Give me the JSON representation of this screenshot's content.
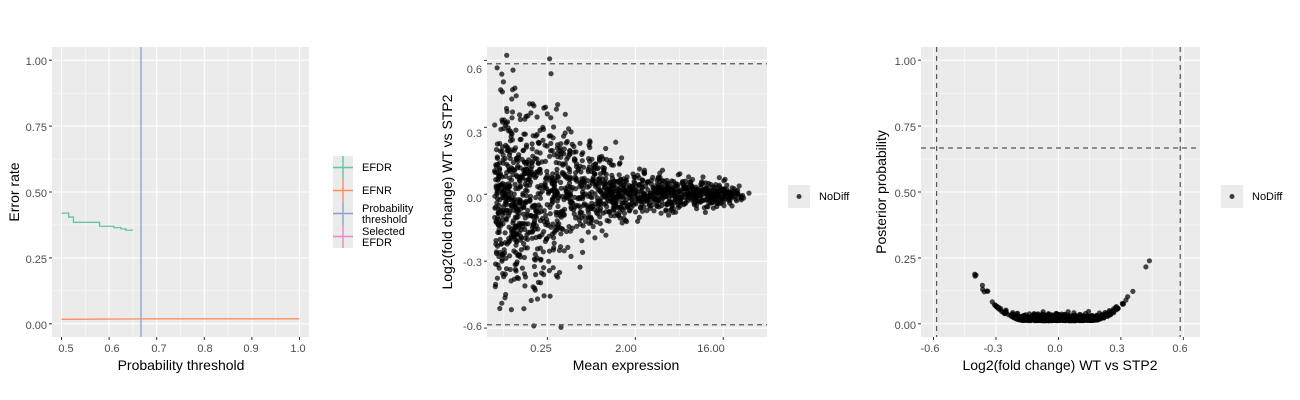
{
  "colors": {
    "panel_bg": "#ebebeb",
    "grid_major": "#ffffff",
    "efdr": "#66c2a5",
    "efnr": "#fc8d62",
    "prob_threshold": "#8da0cb",
    "selected_efdr": "#e78ac3",
    "points": "#000000",
    "dashed_line": "#555555"
  },
  "chart_data": [
    {
      "type": "line",
      "xlabel": "Probability threshold",
      "ylabel": "Error rate",
      "xlim": [
        0.48,
        1.02
      ],
      "ylim": [
        -0.05,
        1.05
      ],
      "x_ticks": [
        0.5,
        0.6,
        0.7,
        0.8,
        0.9,
        1.0
      ],
      "x_tick_labels": [
        "0.5",
        "0.6",
        "0.7",
        "0.8",
        "0.9",
        "1.0"
      ],
      "y_ticks": [
        0,
        0.25,
        0.5,
        0.75,
        1.0
      ],
      "y_tick_labels": [
        "0.00",
        "0.25",
        "0.50",
        "0.75",
        "1.00"
      ],
      "grid": true,
      "legend_position": "right",
      "legend": [
        "EFDR",
        "EFNR",
        "Probability\nthreshold",
        "Selected\nEFDR"
      ],
      "series": [
        {
          "name": "EFDR",
          "x": [
            0.5,
            0.51,
            0.515,
            0.525,
            0.57,
            0.58,
            0.6,
            0.61,
            0.625,
            0.635,
            0.65
          ],
          "y": [
            0.42,
            0.42,
            0.405,
            0.385,
            0.385,
            0.37,
            0.37,
            0.365,
            0.36,
            0.355,
            0.355
          ]
        },
        {
          "name": "EFNR",
          "x": [
            0.5,
            0.6,
            0.7,
            0.8,
            0.9,
            1.0
          ],
          "y": [
            0.017,
            0.018,
            0.019,
            0.019,
            0.019,
            0.019
          ]
        }
      ],
      "vlines": [
        {
          "name": "Probability\nthreshold",
          "x": 0.667
        }
      ]
    },
    {
      "type": "scatter",
      "xlabel": "Mean expression",
      "ylabel": "Log2(fold change) WT vs STP2",
      "x_scale": "log2",
      "xlim": [
        0.06,
        45
      ],
      "ylim": [
        -0.64,
        0.66
      ],
      "x_ticks": [
        0.25,
        2,
        16
      ],
      "x_tick_labels": [
        "0.25",
        "2.00",
        "16.00"
      ],
      "y_ticks": [
        -0.6,
        -0.3,
        0,
        0.3,
        0.6
      ],
      "y_tick_labels": [
        "-0.6",
        "-0.3",
        "0.0",
        "0.3",
        "0.6"
      ],
      "grid": true,
      "legend_position": "right",
      "legend": [
        "NoDiff"
      ],
      "hlines": [
        0.585,
        -0.585
      ],
      "series": [
        {
          "name": "NoDiff",
          "n_points": 1500,
          "pattern": "funnel narrowing with increasing mean expression, max spread near mean 0.25"
        }
      ]
    },
    {
      "type": "scatter",
      "xlabel": "Log2(fold change) WT vs STP2",
      "ylabel": "Posterior probability",
      "xlim": [
        -0.66,
        0.68
      ],
      "ylim": [
        -0.05,
        1.05
      ],
      "x_ticks": [
        -0.6,
        -0.3,
        0,
        0.3,
        0.6
      ],
      "x_tick_labels": [
        "-0.6",
        "-0.3",
        "0.0",
        "0.3",
        "0.6"
      ],
      "y_ticks": [
        0,
        0.25,
        0.5,
        0.75,
        1.0
      ],
      "y_tick_labels": [
        "0.00",
        "0.25",
        "0.50",
        "0.75",
        "1.00"
      ],
      "grid": true,
      "legend_position": "right",
      "legend": [
        "NoDiff"
      ],
      "vlines": [
        -0.585,
        0.585
      ],
      "hlines": [
        0.667
      ],
      "series": [
        {
          "name": "NoDiff",
          "n_points": 900,
          "pattern": "U-shape: probability rises with |log2 fold change|"
        }
      ]
    }
  ]
}
